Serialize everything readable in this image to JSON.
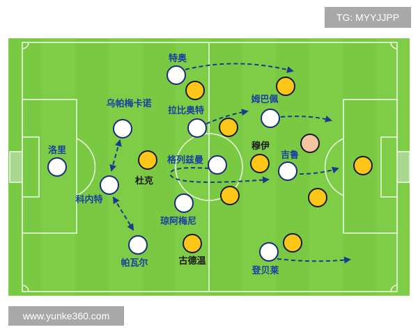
{
  "watermark_top": "TG: MYYJJPP",
  "watermark_bottom": "www.yunke360.com",
  "colors": {
    "pitch": "#7ac943",
    "stripe": "#84d04c",
    "home": "#ffffff",
    "away": "#ffc61a",
    "away_keeper": "#f5c4a0",
    "label_home": "#1a3fa0",
    "label_away": "#1a1a1a",
    "arrow": "#1a3a8a"
  },
  "players": [
    {
      "name": "特奥",
      "team": "home"
    },
    {
      "name": "乌帕梅卡诺",
      "team": "home"
    },
    {
      "name": "拉比奥特",
      "team": "home"
    },
    {
      "name": "洛里",
      "team": "home"
    },
    {
      "name": "科内特",
      "team": "home"
    },
    {
      "name": "格列兹曼",
      "team": "home"
    },
    {
      "name": "琼阿梅尼",
      "team": "home"
    },
    {
      "name": "帕瓦尔",
      "team": "home"
    },
    {
      "name": "姆巴佩",
      "team": "home"
    },
    {
      "name": "吉鲁",
      "team": "home"
    },
    {
      "name": "登贝莱",
      "team": "home"
    },
    {
      "name": "杜克",
      "team": "away"
    },
    {
      "name": "穆伊",
      "team": "away"
    },
    {
      "name": "古德温",
      "team": "away"
    },
    {
      "name": "",
      "team": "away"
    },
    {
      "name": "",
      "team": "away"
    },
    {
      "name": "",
      "team": "away"
    },
    {
      "name": "",
      "team": "away"
    },
    {
      "name": "",
      "team": "away"
    },
    {
      "name": "",
      "team": "away"
    },
    {
      "name": "",
      "team": "away"
    },
    {
      "name": "",
      "team": "away_keeper"
    }
  ]
}
